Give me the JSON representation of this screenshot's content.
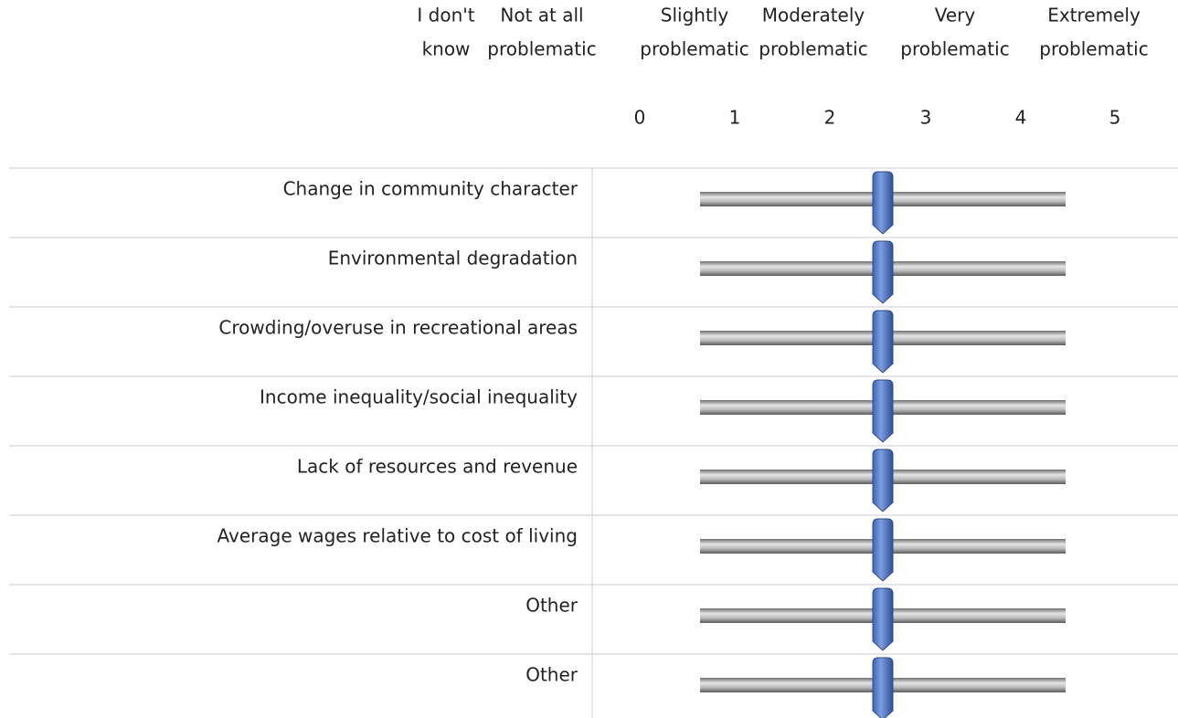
{
  "scale": {
    "columns": [
      [
        "I don't",
        "know"
      ],
      [
        "Not at all",
        "problematic"
      ],
      [
        "Slightly",
        "problematic"
      ],
      [
        "Moderately",
        "problematic"
      ],
      [
        "Very",
        "problematic"
      ],
      [
        "Extremely",
        "problematic"
      ]
    ],
    "numbers": [
      "0",
      "1",
      "2",
      "3",
      "4",
      "5"
    ]
  },
  "rows": [
    "Change in community character",
    "Environmental degradation",
    "Crowding/overuse in recreational areas",
    "Income inequality/social inequality",
    "Lack of resources and revenue",
    "Average wages relative to cost of living",
    "Other",
    "Other"
  ]
}
